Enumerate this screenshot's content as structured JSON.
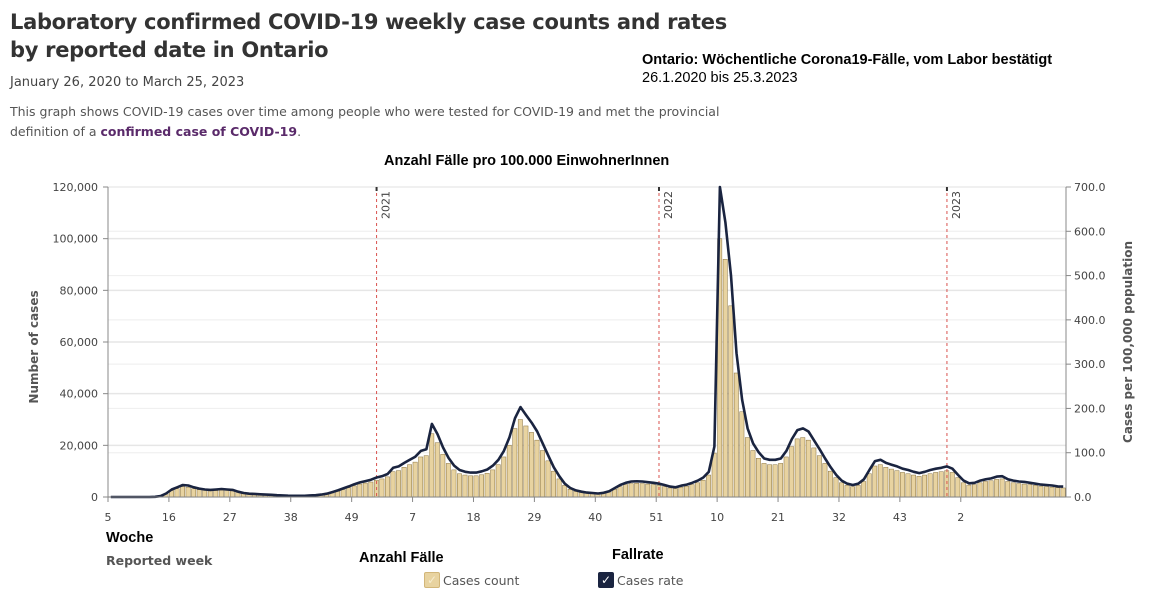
{
  "header": {
    "title": "Laboratory confirmed COVID-19 weekly case counts and rates by reported date in Ontario",
    "date_range": "January 26, 2020 to March 25, 2023",
    "description_prefix": "This graph shows COVID-19 cases over time among people who were tested for COVID-19 and met the provincial definition of a ",
    "description_link": "confirmed case of COVID-19",
    "description_suffix": "."
  },
  "annotations_de": {
    "title": "Ontario: Wöchentliche Corona19-Fälle, vom Labor bestätigt",
    "date_range": "26.1.2020 bis 25.3.2023",
    "rate_axis_label": "Anzahl Fälle pro 100.000 EinwohnerInnen",
    "week_label": "Woche",
    "count_label": "Anzahl Fälle",
    "rate_label": "Fallrate"
  },
  "legend": {
    "items": [
      {
        "label": "Cases count",
        "checked": true,
        "color": "#e8d3a0"
      },
      {
        "label": "Cases rate",
        "checked": true,
        "color": "#1a2440"
      }
    ]
  },
  "chart_data": {
    "type": "bar",
    "title": "Laboratory confirmed COVID-19 weekly case counts and rates by reported date in Ontario",
    "xlabel": "Reported week",
    "ylabel": "Number of cases",
    "y2label": "Cases per 100,000 population",
    "ylim": [
      0,
      120000
    ],
    "y2lim": [
      0,
      700
    ],
    "yticks": [
      "0",
      "20,000",
      "40,000",
      "60,000",
      "80,000",
      "100,000",
      "120,000"
    ],
    "y2ticks": [
      "0.0",
      "100.0",
      "200.0",
      "300.0",
      "400.0",
      "500.0",
      "600.0",
      "700.0"
    ],
    "xticks": [
      "5",
      "16",
      "27",
      "38",
      "49",
      "7",
      "18",
      "29",
      "40",
      "51",
      "10",
      "21",
      "32",
      "43",
      "2"
    ],
    "grid": true,
    "legend_position": "bottom",
    "year_markers": [
      {
        "label": "2021",
        "week_index": 48
      },
      {
        "label": "2022",
        "week_index": 99
      },
      {
        "label": "2023",
        "week_index": 151
      }
    ],
    "first_week": 5,
    "series": [
      {
        "name": "Cases count",
        "type": "bar",
        "axis": "left",
        "values": [
          0,
          0,
          0,
          0,
          0,
          0,
          0,
          0,
          50,
          300,
          1200,
          2500,
          3200,
          4000,
          3800,
          3200,
          2800,
          2600,
          2400,
          2500,
          2700,
          2600,
          2400,
          1800,
          1300,
          1100,
          1000,
          900,
          800,
          700,
          600,
          500,
          450,
          400,
          380,
          400,
          500,
          600,
          800,
          1100,
          1600,
          2200,
          2900,
          3600,
          4300,
          5000,
          5400,
          5800,
          6500,
          7000,
          7800,
          9800,
          10200,
          11500,
          12500,
          13500,
          15500,
          16000,
          24500,
          21000,
          16500,
          13000,
          10500,
          9000,
          8500,
          8200,
          8200,
          8600,
          9200,
          10500,
          12500,
          15500,
          20000,
          26500,
          30000,
          27500,
          25000,
          22000,
          18000,
          14000,
          10000,
          7000,
          4500,
          3000,
          2200,
          1800,
          1500,
          1300,
          1200,
          1400,
          2000,
          3000,
          4000,
          4800,
          5200,
          5300,
          5200,
          5000,
          4800,
          4500,
          4000,
          3500,
          3300,
          3800,
          4200,
          4800,
          5500,
          6500,
          8500,
          17000,
          100000,
          92000,
          74000,
          48000,
          33000,
          23000,
          18000,
          15000,
          13000,
          12500,
          12500,
          13000,
          15500,
          19500,
          22500,
          23000,
          22000,
          19000,
          16000,
          13000,
          10000,
          7500,
          5500,
          4500,
          4000,
          4500,
          6000,
          9000,
          12000,
          12500,
          11500,
          10800,
          10200,
          9500,
          9000,
          8500,
          8000,
          8500,
          9000,
          9500,
          9800,
          10200,
          9500,
          7500,
          5500,
          4600,
          4800,
          5500,
          6000,
          6300,
          6800,
          7000,
          6000,
          5500,
          5200,
          5000,
          4800,
          4500,
          4200,
          4000,
          3800,
          3600,
          3500
        ]
      },
      {
        "name": "Cases rate",
        "type": "line",
        "axis": "right",
        "values": [
          0,
          0,
          0,
          0,
          0,
          0,
          0,
          0,
          0.5,
          2,
          8,
          17,
          22,
          27,
          26,
          22,
          19,
          17,
          16,
          17,
          18,
          17,
          16,
          12,
          9,
          7.5,
          7,
          6,
          5.5,
          5,
          4,
          3.5,
          3,
          2.8,
          2.6,
          2.8,
          3.5,
          4,
          5.5,
          7.5,
          11,
          15,
          19.5,
          24,
          29,
          33,
          36,
          39,
          44,
          47,
          52,
          66,
          69,
          77,
          84,
          91,
          104,
          108,
          165,
          142,
          112,
          88,
          71,
          61,
          57,
          55,
          55,
          58,
          62,
          71,
          84,
          104,
          135,
          178,
          203,
          185,
          168,
          148,
          121,
          94,
          67,
          47,
          30,
          20,
          15,
          12,
          10,
          9,
          8,
          9.5,
          13,
          20,
          27,
          32,
          35,
          35.5,
          35,
          33.5,
          32,
          30,
          27,
          23.5,
          22,
          25.5,
          28,
          32,
          37,
          44,
          57,
          114,
          700,
          620,
          500,
          325,
          220,
          155,
          121,
          101,
          87,
          84,
          84,
          87,
          104,
          131,
          151,
          155,
          148,
          128,
          108,
          87,
          67,
          50,
          37,
          30,
          27,
          30,
          40,
          61,
          81,
          84,
          77,
          73,
          69,
          64,
          61,
          57,
          54,
          57,
          61,
          64,
          66,
          69,
          64,
          50,
          37,
          31,
          32,
          37,
          40,
          42,
          46,
          47,
          40,
          37,
          35,
          34,
          32,
          30,
          28,
          27,
          26,
          24,
          23.5
        ]
      }
    ]
  }
}
